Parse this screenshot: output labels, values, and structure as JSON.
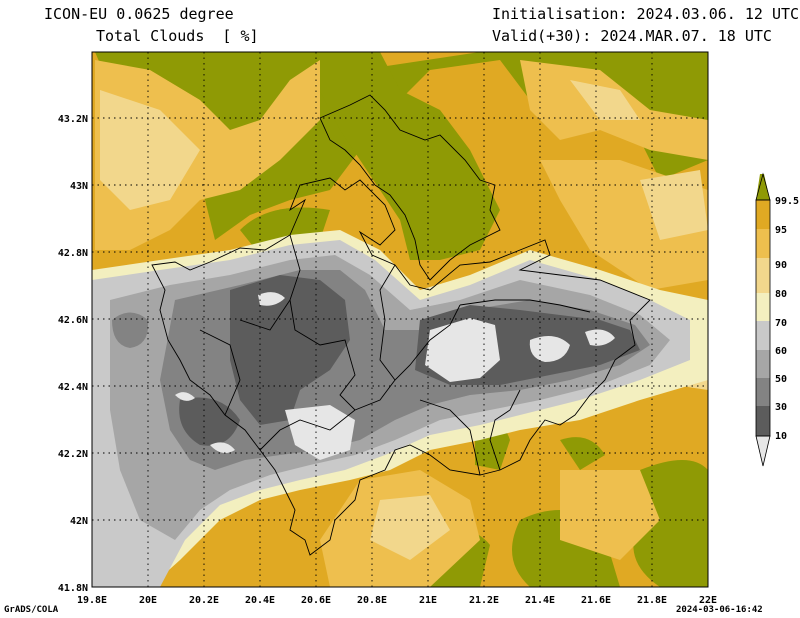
{
  "header": {
    "model": "ICON-EU 0.0625 degree",
    "variable": "Total Clouds  [ %]",
    "init": "Initialisation: 2024.03.06. 12 UTC",
    "valid": "Valid(+30): 2024.MAR.07. 18 UTC"
  },
  "footer": {
    "credit": "GrADS/COLA",
    "timestamp": "2024-03-06-16:42"
  },
  "axes": {
    "x_ticks": [
      "19.8E",
      "20E",
      "20.2E",
      "20.4E",
      "20.6E",
      "20.8E",
      "21E",
      "21.2E",
      "21.4E",
      "21.6E",
      "21.8E",
      "22E"
    ],
    "y_ticks": [
      "43.2N",
      "43N",
      "42.8N",
      "42.6N",
      "42.4N",
      "42.2N",
      "42N",
      "41.8N"
    ]
  },
  "legend": {
    "labels": [
      "99.5",
      "95",
      "90",
      "80",
      "70",
      "60",
      "50",
      "30",
      "10"
    ],
    "colors": {
      "c99": "#8f9a05",
      "c95": "#e0a923",
      "c90": "#eebf4e",
      "c80": "#f2d78c",
      "c70": "#f3efbf",
      "c60": "#c9c9c9",
      "c50": "#a6a6a6",
      "c30": "#838383",
      "c10": "#5c5c5c",
      "c0": "#e6e6e6"
    }
  }
}
